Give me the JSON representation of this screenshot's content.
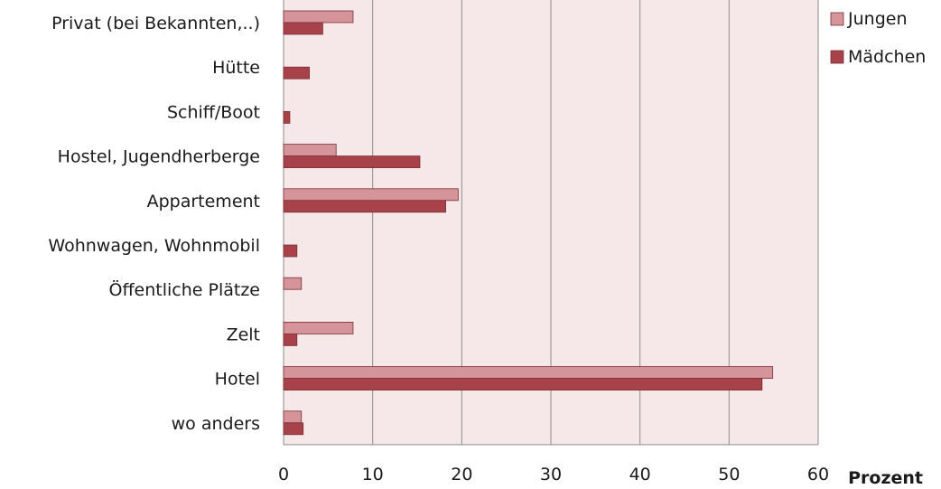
{
  "chart_data": {
    "type": "bar",
    "orientation": "horizontal",
    "categories": [
      "Privat (bei Bekannten,..)",
      "Hütte",
      "Schiff/Boot",
      "Hostel, Jugendherberge",
      "Appartement",
      "Wohnwagen, Wohnmobil",
      "Öffentliche Plätze",
      "Zelt",
      "Hotel",
      "wo anders"
    ],
    "series": [
      {
        "name": "Jungen",
        "color": "#d4949a",
        "values": [
          7.8,
          0,
          0,
          5.9,
          19.6,
          0,
          2.0,
          7.8,
          54.9,
          2.0
        ]
      },
      {
        "name": "Mädchen",
        "color": "#a8424a",
        "values": [
          4.4,
          2.9,
          0.7,
          15.3,
          18.2,
          1.5,
          0,
          1.5,
          53.7,
          2.2
        ]
      }
    ],
    "xlabel": "Prozent",
    "ylabel": "",
    "xlim": [
      0,
      60
    ],
    "xticks": [
      0,
      10,
      20,
      30,
      40,
      50,
      60
    ],
    "grid": "vertical",
    "legend": "top-right",
    "plot_background": "#f6e8e8",
    "gridline_color": "#8c8c8c"
  }
}
